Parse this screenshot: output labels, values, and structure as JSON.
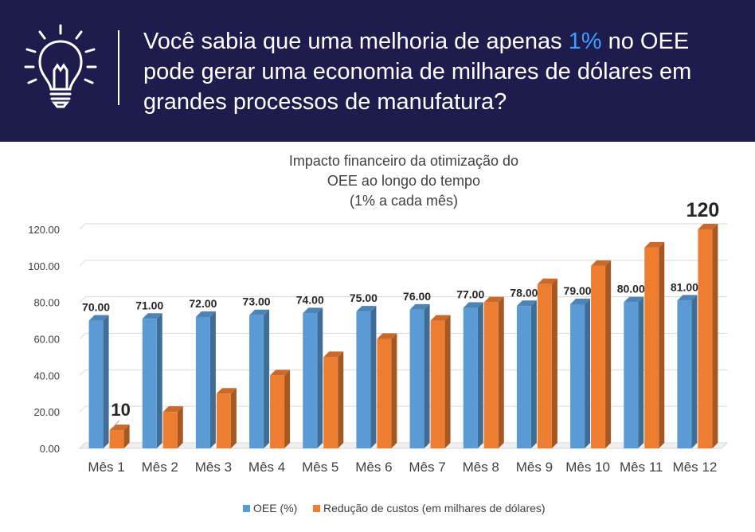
{
  "banner": {
    "icon": "lightbulb-icon",
    "headline_pre": "Você sabia que uma melhoria de apenas ",
    "headline_highlight": "1%",
    "headline_post": " no OEE pode gerar uma economia de milhares de dólares em grandes processos de manufatura?",
    "highlight_color": "#3aa0ff"
  },
  "chart_data": {
    "type": "bar",
    "title": [
      "Impacto financeiro da otimização do",
      "OEE ao longo do tempo",
      "(1% a cada mês)"
    ],
    "categories": [
      "Mês 1",
      "Mês 2",
      "Mês 3",
      "Mês 4",
      "Mês 5",
      "Mês 6",
      "Mês 7",
      "Mês 8",
      "Mês 9",
      "Mês 10",
      "Mês 11",
      "Mês 12"
    ],
    "series": [
      {
        "name": "OEE (%)",
        "color": "#5b9bd5",
        "values": [
          70,
          71,
          72,
          73,
          74,
          75,
          76,
          77,
          78,
          79,
          80,
          81
        ],
        "labels": [
          "70.00",
          "71.00",
          "72.00",
          "73.00",
          "74.00",
          "75.00",
          "76.00",
          "77.00",
          "78.00",
          "79.00",
          "80.00",
          "81.00"
        ]
      },
      {
        "name": "Redução de custos (em milhares de dólares)",
        "color": "#ed7d31",
        "values": [
          10,
          20,
          30,
          40,
          50,
          60,
          70,
          80,
          90,
          100,
          110,
          120
        ]
      }
    ],
    "callouts": [
      {
        "category": "Mês 1",
        "text": "10"
      },
      {
        "category": "Mês 12",
        "text": "120"
      }
    ],
    "ylim": [
      0,
      120
    ],
    "yticks": [
      "0.00",
      "20.00",
      "40.00",
      "60.00",
      "80.00",
      "100.00",
      "120.00"
    ],
    "grid": true,
    "legend": "bottom"
  }
}
